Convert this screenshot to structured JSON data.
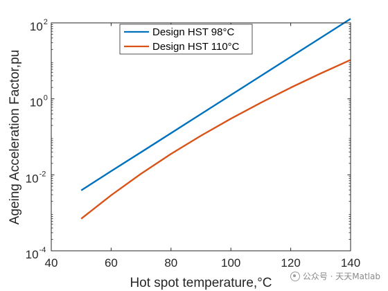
{
  "chart_data": {
    "type": "line",
    "title": "",
    "xlabel": "Hot spot temperature,°C",
    "ylabel": "Ageing Acceleration Factor,pu",
    "xlim": [
      40,
      140
    ],
    "ylim_exp": [
      -4,
      2
    ],
    "yscale": "log",
    "xticks": [
      "40",
      "60",
      "80",
      "100",
      "120",
      "140"
    ],
    "yticks": [
      {
        "base": "10",
        "exp": "-4"
      },
      {
        "base": "10",
        "exp": "-2"
      },
      {
        "base": "10",
        "exp": "0"
      },
      {
        "base": "10",
        "exp": "2"
      }
    ],
    "legend_position": "top-center",
    "grid": false,
    "series": [
      {
        "name": "Design HST 98°C",
        "color": "#0072BD",
        "x": [
          50,
          60,
          70,
          80,
          90,
          100,
          110,
          120,
          130,
          140
        ],
        "y": [
          0.0039,
          0.0125,
          0.0394,
          0.125,
          0.397,
          1.26,
          4.0,
          12.7,
          40.3,
          128
        ]
      },
      {
        "name": "Design HST 110°C",
        "color": "#D95319",
        "x": [
          50,
          60,
          70,
          80,
          90,
          100,
          110,
          120,
          130,
          140
        ],
        "y": [
          0.0007,
          0.0029,
          0.0107,
          0.0355,
          0.107,
          0.3,
          0.79,
          1.97,
          4.66,
          10.6
        ]
      }
    ]
  },
  "watermark": {
    "icon": "wechat-icon",
    "text": "公众号 · 天天Matlab"
  }
}
